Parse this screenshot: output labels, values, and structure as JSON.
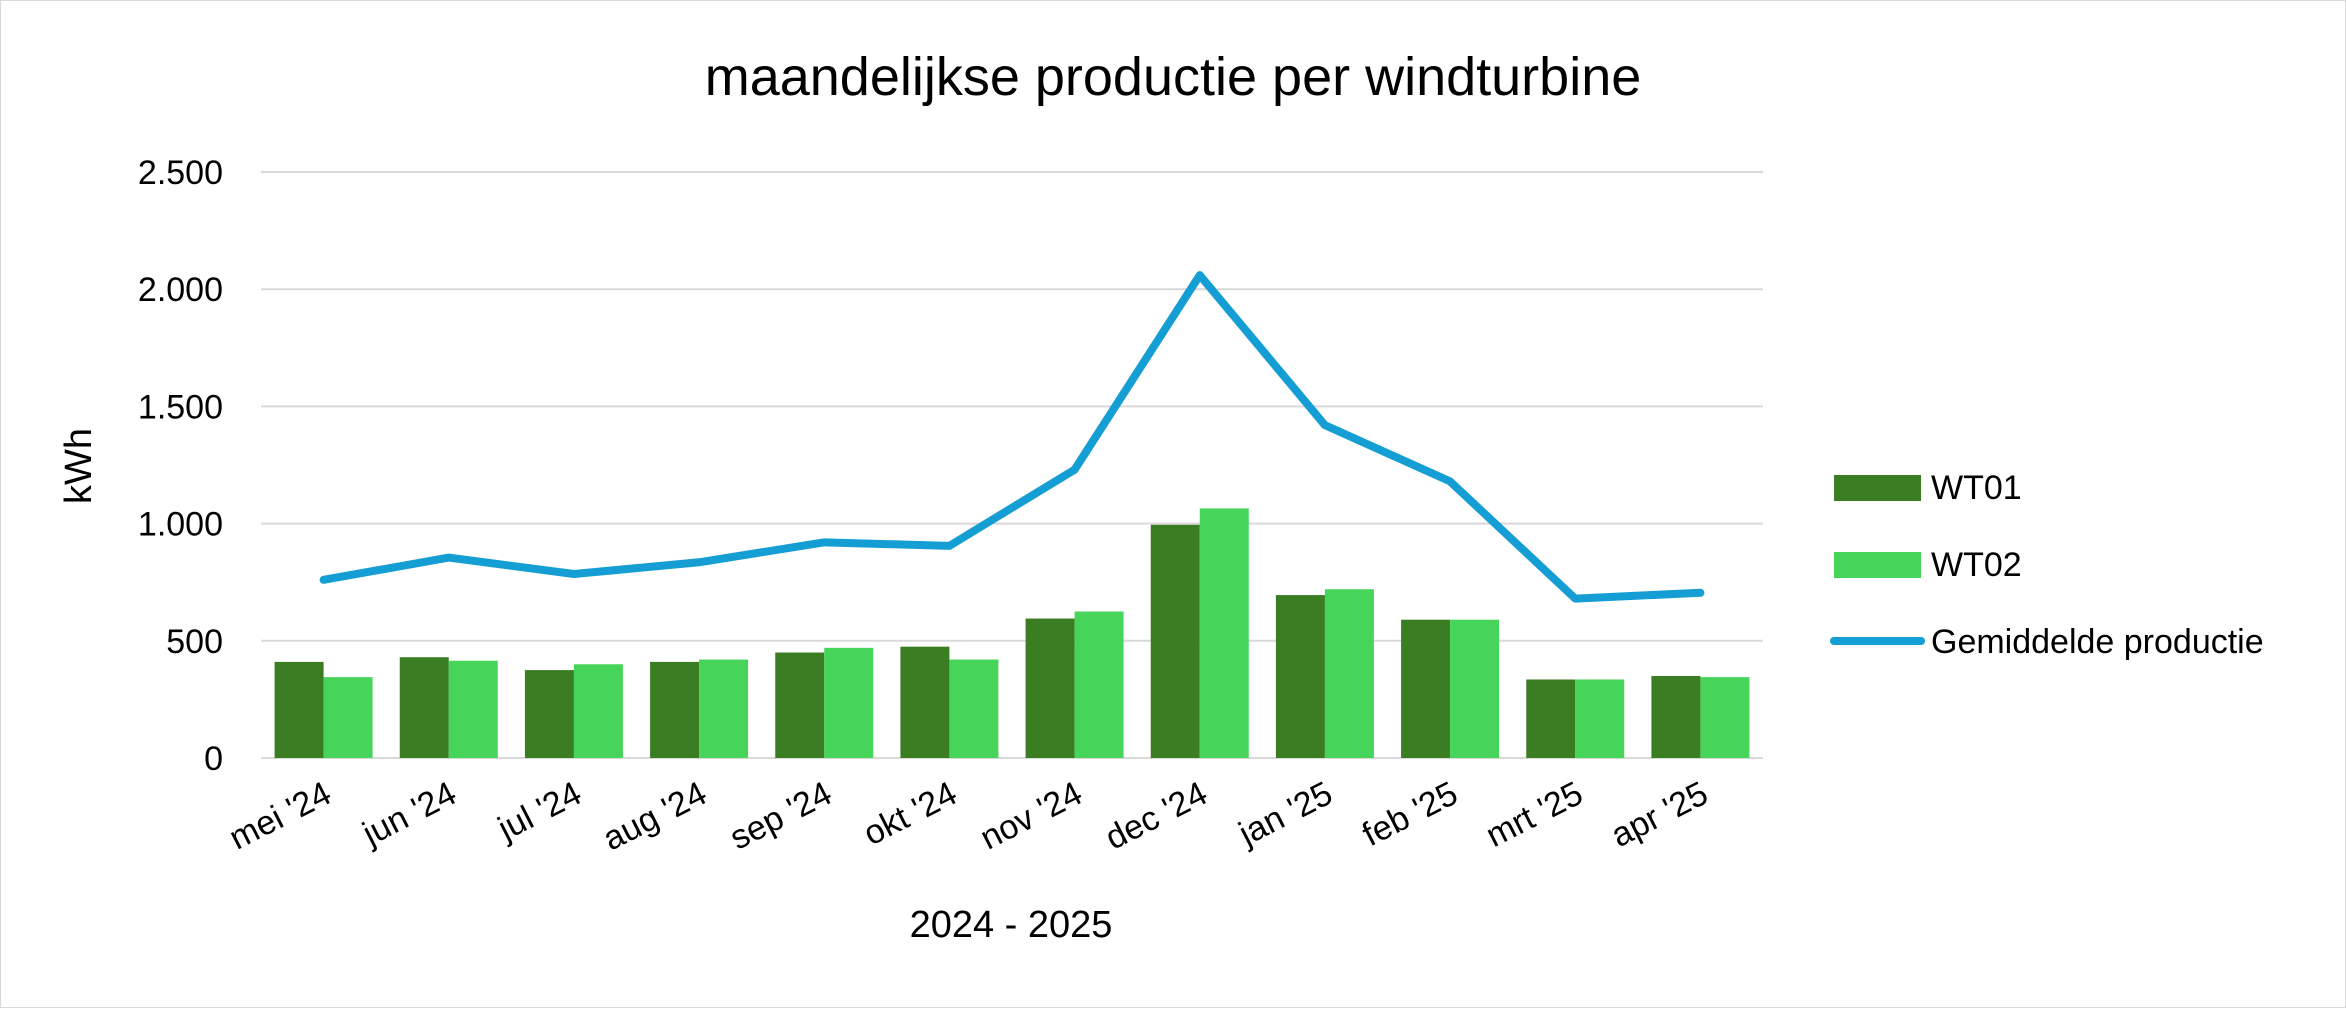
{
  "chart_data": {
    "type": "bar",
    "title": "maandelijkse productie per windturbine",
    "xlabel": "2024 - 2025",
    "ylabel": "kWh",
    "ylim": [
      0,
      2500
    ],
    "yticks": [
      0,
      500,
      1000,
      1500,
      2000,
      2500
    ],
    "ytick_labels": [
      "0",
      "500",
      "1.000",
      "1.500",
      "2.000",
      "2.500"
    ],
    "grid": true,
    "legend_position": "right",
    "categories": [
      "mei '24",
      "jun '24",
      "jul '24",
      "aug '24",
      "sep '24",
      "okt '24",
      "nov '24",
      "dec '24",
      "jan '25",
      "feb '25",
      "mrt '25",
      "apr '25"
    ],
    "series": [
      {
        "name": "WT01",
        "type": "bar",
        "color": "#3a7d22",
        "values": [
          410,
          430,
          375,
          410,
          450,
          475,
          595,
          995,
          695,
          590,
          335,
          350
        ]
      },
      {
        "name": "WT02",
        "type": "bar",
        "color": "#47d45a",
        "values": [
          345,
          415,
          400,
          420,
          470,
          420,
          625,
          1065,
          720,
          590,
          335,
          345
        ]
      },
      {
        "name": "Gemiddelde productie",
        "type": "line",
        "color": "#159ed4",
        "values": [
          760,
          855,
          785,
          835,
          920,
          905,
          1230,
          2060,
          1420,
          1180,
          680,
          705
        ]
      }
    ]
  }
}
